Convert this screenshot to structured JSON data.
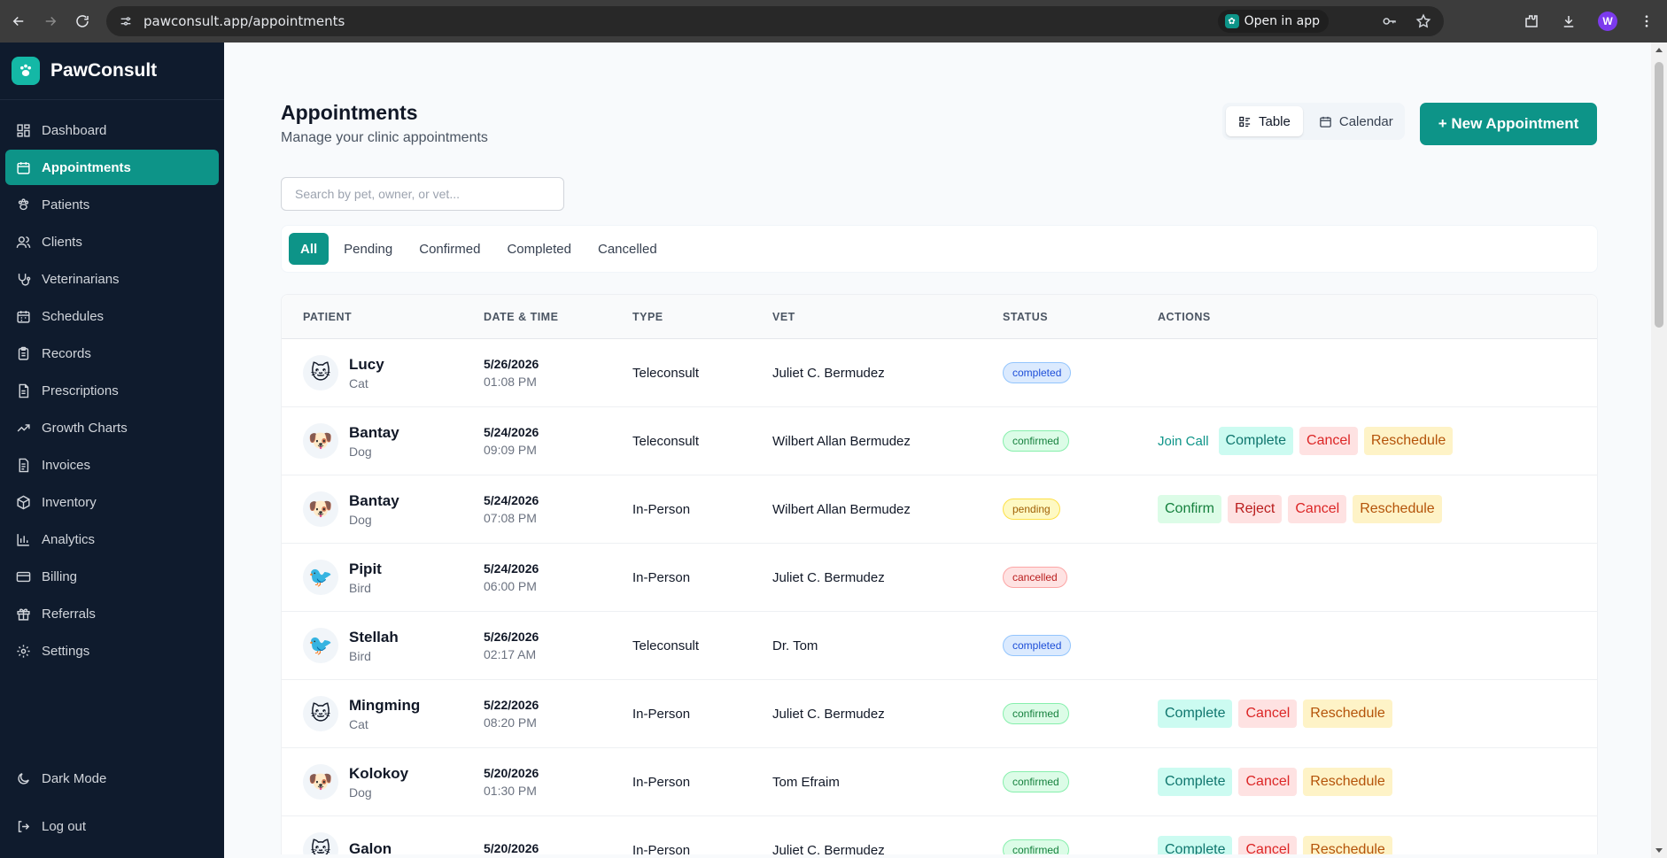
{
  "browser": {
    "url": "pawconsult.app/appointments",
    "open_in_app": "Open in app",
    "profile_initial": "W"
  },
  "sidebar": {
    "brand": "PawConsult",
    "items": [
      {
        "label": "Dashboard",
        "icon": "dashboard-icon"
      },
      {
        "label": "Appointments",
        "icon": "calendar-icon",
        "active": true
      },
      {
        "label": "Patients",
        "icon": "paw-icon"
      },
      {
        "label": "Clients",
        "icon": "users-icon"
      },
      {
        "label": "Veterinarians",
        "icon": "stethoscope-icon"
      },
      {
        "label": "Schedules",
        "icon": "schedule-icon"
      },
      {
        "label": "Records",
        "icon": "clipboard-icon"
      },
      {
        "label": "Prescriptions",
        "icon": "prescription-icon"
      },
      {
        "label": "Growth Charts",
        "icon": "trending-up-icon"
      },
      {
        "label": "Invoices",
        "icon": "file-icon"
      },
      {
        "label": "Inventory",
        "icon": "box-icon"
      },
      {
        "label": "Analytics",
        "icon": "bar-chart-icon"
      },
      {
        "label": "Billing",
        "icon": "credit-card-icon"
      },
      {
        "label": "Referrals",
        "icon": "gift-icon"
      },
      {
        "label": "Settings",
        "icon": "gear-icon"
      }
    ],
    "dark_mode": "Dark Mode",
    "logout": "Log out"
  },
  "header": {
    "title": "Appointments",
    "subtitle": "Manage your clinic appointments",
    "view_table": "Table",
    "view_calendar": "Calendar",
    "new_button": "+ New Appointment"
  },
  "search": {
    "placeholder": "Search by pet, owner, or vet..."
  },
  "filters": [
    "All",
    "Pending",
    "Confirmed",
    "Completed",
    "Cancelled"
  ],
  "table": {
    "columns": [
      "PATIENT",
      "DATE & TIME",
      "TYPE",
      "VET",
      "STATUS",
      "ACTIONS"
    ],
    "rows": [
      {
        "name": "Lucy",
        "species": "Cat",
        "emoji": "🐱",
        "date": "5/26/2026",
        "time": "01:08 PM",
        "type": "Teleconsult",
        "vet": "Juliet C. Bermudez",
        "status": "completed",
        "actions": []
      },
      {
        "name": "Bantay",
        "species": "Dog",
        "emoji": "🐶",
        "date": "5/24/2026",
        "time": "09:09 PM",
        "type": "Teleconsult",
        "vet": "Wilbert Allan Bermudez",
        "status": "confirmed",
        "actions": [
          {
            "label": "Join Call",
            "kind": "join"
          },
          {
            "label": "Complete",
            "kind": "complete"
          },
          {
            "label": "Cancel",
            "kind": "cancel"
          },
          {
            "label": "Reschedule",
            "kind": "reschedule"
          }
        ]
      },
      {
        "name": "Bantay",
        "species": "Dog",
        "emoji": "🐶",
        "date": "5/24/2026",
        "time": "07:08 PM",
        "type": "In-Person",
        "vet": "Wilbert Allan Bermudez",
        "status": "pending",
        "actions": [
          {
            "label": "Confirm",
            "kind": "confirm"
          },
          {
            "label": "Reject",
            "kind": "reject"
          },
          {
            "label": "Cancel",
            "kind": "cancel"
          },
          {
            "label": "Reschedule",
            "kind": "reschedule"
          }
        ]
      },
      {
        "name": "Pipit",
        "species": "Bird",
        "emoji": "🐦",
        "date": "5/24/2026",
        "time": "06:00 PM",
        "type": "In-Person",
        "vet": "Juliet C. Bermudez",
        "status": "cancelled",
        "actions": []
      },
      {
        "name": "Stellah",
        "species": "Bird",
        "emoji": "🐦",
        "date": "5/26/2026",
        "time": "02:17 AM",
        "type": "Teleconsult",
        "vet": "Dr. Tom",
        "status": "completed",
        "actions": []
      },
      {
        "name": "Mingming",
        "species": "Cat",
        "emoji": "🐱",
        "date": "5/22/2026",
        "time": "08:20 PM",
        "type": "In-Person",
        "vet": "Juliet C. Bermudez",
        "status": "confirmed",
        "actions": [
          {
            "label": "Complete",
            "kind": "complete"
          },
          {
            "label": "Cancel",
            "kind": "cancel"
          },
          {
            "label": "Reschedule",
            "kind": "reschedule"
          }
        ]
      },
      {
        "name": "Kolokoy",
        "species": "Dog",
        "emoji": "🐶",
        "date": "5/20/2026",
        "time": "01:30 PM",
        "type": "In-Person",
        "vet": "Tom Efraim",
        "status": "confirmed",
        "actions": [
          {
            "label": "Complete",
            "kind": "complete"
          },
          {
            "label": "Cancel",
            "kind": "cancel"
          },
          {
            "label": "Reschedule",
            "kind": "reschedule"
          }
        ]
      },
      {
        "name": "Galon",
        "species": "",
        "emoji": "🐱",
        "date": "5/20/2026",
        "time": "",
        "type": "In-Person",
        "vet": "Juliet C. Bermudez",
        "status": "confirmed",
        "actions": [
          {
            "label": "Complete",
            "kind": "complete"
          },
          {
            "label": "Cancel",
            "kind": "cancel"
          },
          {
            "label": "Reschedule",
            "kind": "reschedule"
          }
        ]
      }
    ]
  }
}
